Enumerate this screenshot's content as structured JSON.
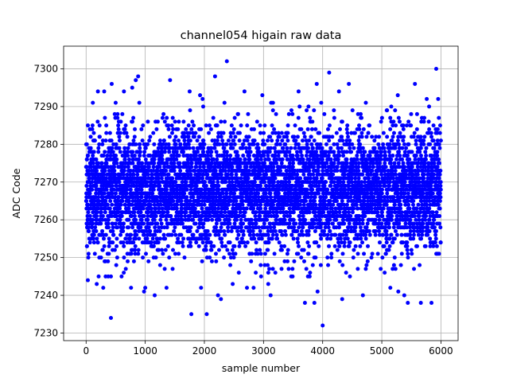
{
  "chart_data": {
    "type": "scatter",
    "title": "channel054 higain raw data",
    "xlabel": "sample number",
    "ylabel": "ADC Code",
    "xlim": [
      -380,
      6290
    ],
    "ylim": [
      7228,
      7306
    ],
    "xticks": [
      0,
      1000,
      2000,
      3000,
      4000,
      5000,
      6000
    ],
    "yticks": [
      7230,
      7240,
      7250,
      7260,
      7270,
      7280,
      7290,
      7300
    ],
    "grid": true,
    "legend": "none",
    "marker_color": "#0000ff",
    "sample_count": 6000,
    "value_range_observed": [
      7232,
      7302
    ],
    "series": [
      {
        "marker": "circle",
        "color": "#0000ff",
        "x": [
          30,
          180,
          200,
          290,
          330,
          420,
          600,
          640,
          760,
          780,
          840,
          880,
          900,
          980,
          1000,
          1160,
          1360,
          1420,
          1780,
          1980,
          2040,
          2180,
          2230,
          2280,
          2340,
          2380,
          2720,
          2980,
          3080,
          3120,
          3160,
          3200,
          3610,
          3700,
          3860,
          3900,
          4000,
          4110,
          4190,
          4330,
          4680,
          4730,
          5160,
          5270,
          5380,
          5440,
          5560,
          5660,
          5760,
          5800,
          5840,
          5920
        ],
        "y": [
          7244,
          7243,
          7294,
          7242,
          7245,
          7234,
          7245,
          7294,
          7242,
          7295,
          7297,
          7298,
          7291,
          7241,
          7242,
          7240,
          7242,
          7297,
          7235,
          7290,
          7235,
          7298,
          7240,
          7239,
          7291,
          7302,
          7242,
          7293,
          7243,
          7240,
          7291,
          7246,
          7290,
          7238,
          7238,
          7296,
          7232,
          7299,
          7289,
          7239,
          7240,
          7291,
          7290,
          7293,
          7240,
          7238,
          7296,
          7238,
          7292,
          7290,
          7238,
          7300
        ]
      }
    ]
  }
}
